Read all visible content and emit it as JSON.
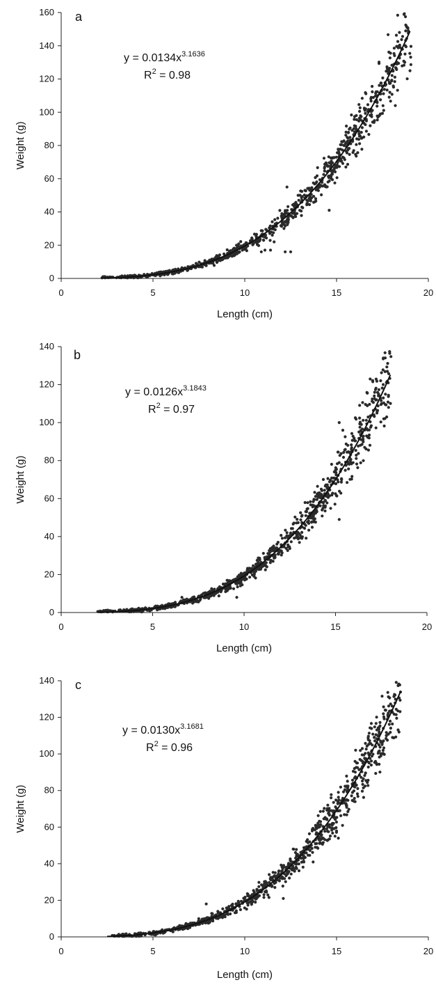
{
  "chart_data": [
    {
      "type": "scatter",
      "panel_label": "a",
      "equation": "y = 0.0134x",
      "exponent": "3.1636",
      "r2_value": "= 0.98",
      "coef": 0.0134,
      "power": 3.1636,
      "xlabel": "Length (cm)",
      "ylabel": "Weight (g)",
      "xlim": [
        0,
        20
      ],
      "ylim": [
        0,
        160
      ],
      "xticks": [
        "0",
        "5",
        "10",
        "15",
        "20"
      ],
      "yticks": [
        "0",
        "20",
        "40",
        "60",
        "80",
        "100",
        "120",
        "140",
        "160"
      ],
      "trend_range": [
        2.2,
        19
      ],
      "scatter_range": [
        2.2,
        19
      ],
      "outliers": [
        {
          "x": 10.9,
          "y": 16
        },
        {
          "x": 11.1,
          "y": 17
        },
        {
          "x": 11.4,
          "y": 17
        },
        {
          "x": 12.2,
          "y": 16
        },
        {
          "x": 12.5,
          "y": 16
        },
        {
          "x": 11.6,
          "y": 22
        },
        {
          "x": 12.3,
          "y": 55
        },
        {
          "x": 14.6,
          "y": 41
        },
        {
          "x": 17.4,
          "y": 111
        },
        {
          "x": 19,
          "y": 125
        },
        {
          "x": 18.2,
          "y": 104
        },
        {
          "x": 17.9,
          "y": 112
        }
      ],
      "grid": false
    },
    {
      "type": "scatter",
      "panel_label": "b",
      "equation": "y = 0.0126x",
      "exponent": "3.1843",
      "r2_value": "= 0.97",
      "coef": 0.0126,
      "power": 3.1843,
      "xlabel": "Length (cm)",
      "ylabel": "Weight (g)",
      "xlim": [
        0,
        20
      ],
      "ylim": [
        0,
        140
      ],
      "xticks": [
        "0",
        "5",
        "10",
        "15",
        "20"
      ],
      "yticks": [
        "0",
        "20",
        "40",
        "60",
        "80",
        "100",
        "120",
        "140"
      ],
      "trend_range": [
        2,
        18
      ],
      "scatter_range": [
        2,
        18
      ],
      "outliers": [
        {
          "x": 15.2,
          "y": 100
        },
        {
          "x": 15.4,
          "y": 96
        },
        {
          "x": 15.2,
          "y": 49
        },
        {
          "x": 17.9,
          "y": 108
        },
        {
          "x": 17.8,
          "y": 103
        },
        {
          "x": 17.4,
          "y": 114
        },
        {
          "x": 6.6,
          "y": 8
        },
        {
          "x": 9.6,
          "y": 8
        }
      ],
      "grid": false
    },
    {
      "type": "scatter",
      "panel_label": "c",
      "equation": "y = 0.0130x",
      "exponent": "3.1681",
      "r2_value": "= 0.96",
      "coef": 0.013,
      "power": 3.1681,
      "xlabel": "Length (cm)",
      "ylabel": "Weight (g)",
      "xlim": [
        0,
        20
      ],
      "ylim": [
        0,
        140
      ],
      "xticks": [
        "0",
        "5",
        "10",
        "15",
        "20"
      ],
      "yticks": [
        "0",
        "20",
        "40",
        "60",
        "80",
        "100",
        "120",
        "140"
      ],
      "trend_range": [
        2.5,
        18.5
      ],
      "scatter_range": [
        2.5,
        18.5
      ],
      "outliers": [
        {
          "x": 18.4,
          "y": 112
        },
        {
          "x": 17.2,
          "y": 106
        },
        {
          "x": 17.4,
          "y": 107
        },
        {
          "x": 15.1,
          "y": 54
        },
        {
          "x": 12.1,
          "y": 21
        },
        {
          "x": 7.9,
          "y": 18
        }
      ],
      "grid": false
    }
  ]
}
